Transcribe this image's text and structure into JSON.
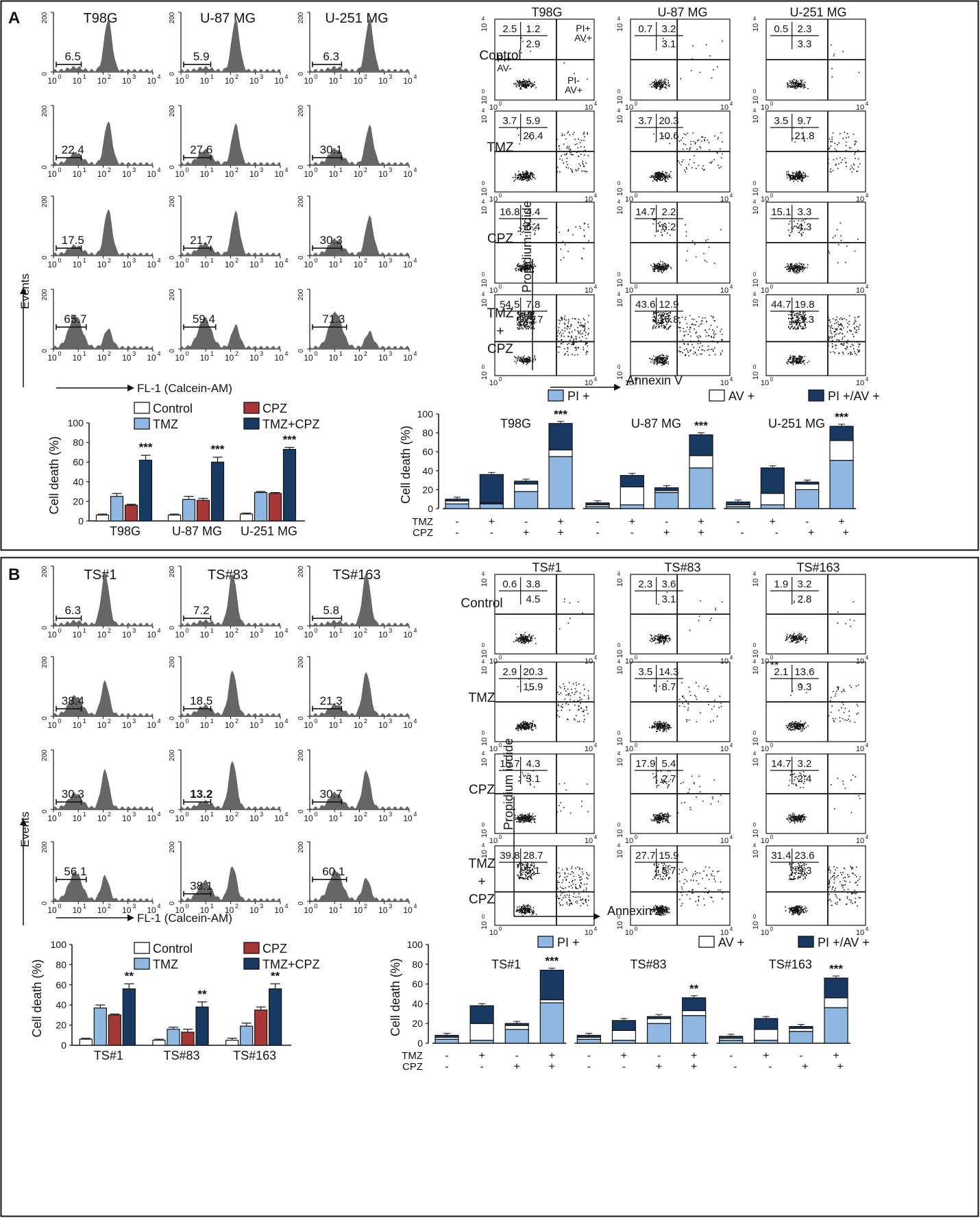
{
  "panels": [
    {
      "letter": "A",
      "cells": [
        "T98G",
        "U-87 MG",
        "U-251 MG"
      ],
      "treatments": [
        "Control",
        "TMZ",
        "CPZ",
        "TMZ\n+\nCPZ"
      ],
      "hist_values": [
        [
          "6.5",
          "5.9",
          "6.3"
        ],
        [
          "22.4",
          "27.6",
          "30.1"
        ],
        [
          "17.5",
          "21.7",
          "30.3"
        ],
        [
          "65.7",
          "59.4",
          "71.3"
        ]
      ],
      "scatter_values": [
        [
          [
            "2.5",
            "1.2",
            "2.9"
          ],
          [
            "0.7",
            "3.2",
            "3.1"
          ],
          [
            "0.5",
            "2.3",
            "3.3"
          ]
        ],
        [
          [
            "3.7",
            "5.9",
            "26.4"
          ],
          [
            "3.7",
            "20.3",
            "10.6"
          ],
          [
            "3.5",
            "9.7",
            "21.8"
          ]
        ],
        [
          [
            "16.8",
            "4.4",
            "6.4"
          ],
          [
            "14.7",
            "2.2",
            "6.2"
          ],
          [
            "15.1",
            "3.3",
            "4.3"
          ]
        ],
        [
          [
            "54.5",
            "7.8",
            "25.7"
          ],
          [
            "43.6",
            "12.9",
            "16.8"
          ],
          [
            "44.7",
            "19.8",
            "11.3"
          ]
        ]
      ],
      "quadrant_labels": {
        "ul": "PI+\nAV-",
        "ur": "PI+\nAV+",
        "lr": "PI-\nAV+"
      },
      "hist_axis": {
        "events": "Events",
        "fl": "FL-1 (Calcein-AM)",
        "ticks": [
          "10",
          "10",
          "10",
          "10",
          "10"
        ],
        "exps": [
          "0",
          "1",
          "2",
          "3",
          "4"
        ],
        "yticks": [
          "0",
          "200"
        ]
      },
      "scatter_axis": {
        "x": "Annexin V",
        "y": "Propidium iodide"
      },
      "legend_bar": [
        "Control",
        "TMZ",
        "CPZ",
        "TMZ+CPZ"
      ],
      "legend_stack": [
        "PI +",
        "AV +",
        "PI +/AV +"
      ],
      "bar_ylabel": "Cell death (%)",
      "stack_ylabel": "Cell death (%)",
      "sign_rows": {
        "tmz_label": "TMZ",
        "cpz_label": "CPZ",
        "tmz": [
          "-",
          "+",
          "-",
          "+"
        ],
        "cpz": [
          "-",
          "-",
          "+",
          "+"
        ]
      }
    },
    {
      "letter": "B",
      "cells": [
        "TS#1",
        "TS#83",
        "TS#163"
      ],
      "treatments": [
        "Control",
        "TMZ",
        "CPZ",
        "TMZ\n+\nCPZ"
      ],
      "hist_values": [
        [
          "6.3",
          "7.2",
          "5.8"
        ],
        [
          "38.4",
          "18.5",
          "21.3"
        ],
        [
          "30.3",
          "13.2",
          "30.7"
        ],
        [
          "56.1",
          "38.1",
          "60.1"
        ]
      ],
      "scatter_values": [
        [
          [
            "0.6",
            "3.8",
            "4.5"
          ],
          [
            "2.3",
            "3.6",
            "3.1"
          ],
          [
            "1.9",
            "3.2",
            "2.8"
          ]
        ],
        [
          [
            "2.9",
            "20.3",
            "15.9"
          ],
          [
            "3.5",
            "14.3",
            "8.7"
          ],
          [
            "2.1",
            "13.6",
            "9.3"
          ]
        ],
        [
          [
            "15.7",
            "4.3",
            "3.1"
          ],
          [
            "17.9",
            "5.4",
            "2.7"
          ],
          [
            "14.7",
            "3.2",
            "2.4"
          ]
        ],
        [
          [
            "39.8",
            "28.7",
            "5.1"
          ],
          [
            "27.7",
            "15.9",
            "5.7"
          ],
          [
            "31.4",
            "23.6",
            "9.3"
          ]
        ]
      ],
      "extra_mark": "**",
      "hist_axis": {
        "events": "Events",
        "fl": "FL-1 (Calcein-AM)",
        "ticks": [
          "10",
          "10",
          "10",
          "10",
          "10"
        ],
        "exps": [
          "0",
          "1",
          "2",
          "3",
          "4"
        ],
        "yticks": [
          "0",
          "200"
        ]
      },
      "scatter_axis": {
        "x": "Annexin V",
        "y": "Propidium iodide"
      },
      "legend_bar": [
        "Control",
        "TMZ",
        "CPZ",
        "TMZ+CPZ"
      ],
      "legend_stack": [
        "PI +",
        "AV +",
        "PI +/AV +"
      ],
      "bar_ylabel": "Cell death (%)",
      "stack_ylabel": "Cell death (%)",
      "sign_rows": {
        "tmz_label": "TMZ",
        "cpz_label": "CPZ",
        "tmz": [
          "-",
          "+",
          "-",
          "+"
        ],
        "cpz": [
          "-",
          "-",
          "+",
          "+"
        ]
      }
    }
  ],
  "colors": {
    "control": "#ffffff",
    "tmz": "#8fb8e0",
    "cpz": "#a83838",
    "combo": "#183a62",
    "hist": "#666666"
  },
  "chart_data": [
    {
      "type": "bar",
      "panel": "A",
      "categories": [
        "T98G",
        "U-87 MG",
        "U-251 MG"
      ],
      "series": [
        {
          "name": "Control",
          "values": [
            6,
            6,
            7
          ]
        },
        {
          "name": "TMZ",
          "values": [
            25,
            22,
            29
          ]
        },
        {
          "name": "CPZ",
          "values": [
            16,
            21,
            28
          ]
        },
        {
          "name": "TMZ+CPZ",
          "values": [
            62,
            60,
            73
          ]
        }
      ],
      "errors": [
        [
          1,
          1,
          1
        ],
        [
          3,
          3,
          1
        ],
        [
          1,
          2,
          1
        ],
        [
          5,
          5,
          2
        ]
      ],
      "significance": [
        "***",
        "***",
        "***"
      ],
      "ylabel": "Cell death (%)",
      "ylim": [
        0,
        100
      ],
      "yticks": [
        0,
        20,
        40,
        60,
        80,
        100
      ]
    },
    {
      "type": "bar",
      "stacked": true,
      "panel": "A",
      "groups": [
        "T98G",
        "U-87 MG",
        "U-251 MG"
      ],
      "conditions": [
        "Control",
        "TMZ",
        "CPZ",
        "TMZ+CPZ"
      ],
      "series": [
        {
          "name": "PI +",
          "values": [
            [
              5,
              5,
              18,
              55
            ],
            [
              2,
              4,
              17,
              43
            ],
            [
              2,
              4,
              20,
              51
            ]
          ]
        },
        {
          "name": "AV +",
          "values": [
            [
              3,
              1,
              8,
              7
            ],
            [
              2,
              19,
              2,
              13
            ],
            [
              2,
              12,
              6,
              21
            ]
          ]
        },
        {
          "name": "PI +/AV +",
          "values": [
            [
              2,
              30,
              3,
              28
            ],
            [
              2,
              12,
              3,
              22
            ],
            [
              3,
              27,
              2,
              15
            ]
          ]
        }
      ],
      "significance": [
        "***",
        "***",
        "***"
      ],
      "ylabel": "Cell death (%)",
      "ylim": [
        0,
        100
      ],
      "yticks": [
        0,
        20,
        40,
        60,
        80,
        100
      ]
    },
    {
      "type": "bar",
      "panel": "B",
      "categories": [
        "TS#1",
        "TS#83",
        "TS#163"
      ],
      "series": [
        {
          "name": "Control",
          "values": [
            6,
            5,
            5
          ]
        },
        {
          "name": "TMZ",
          "values": [
            37,
            16,
            19
          ]
        },
        {
          "name": "CPZ",
          "values": [
            30,
            13,
            35
          ]
        },
        {
          "name": "TMZ+CPZ",
          "values": [
            56,
            38,
            56
          ]
        }
      ],
      "errors": [
        [
          1,
          1,
          2
        ],
        [
          3,
          2,
          3
        ],
        [
          1,
          3,
          3
        ],
        [
          5,
          5,
          5
        ]
      ],
      "significance": [
        "**",
        "**",
        "**"
      ],
      "ylabel": "Cell death (%)",
      "ylim": [
        0,
        100
      ],
      "yticks": [
        0,
        20,
        40,
        60,
        80,
        100
      ]
    },
    {
      "type": "bar",
      "stacked": true,
      "panel": "B",
      "groups": [
        "TS#1",
        "TS#83",
        "TS#163"
      ],
      "conditions": [
        "Control",
        "TMZ",
        "CPZ",
        "TMZ+CPZ"
      ],
      "series": [
        {
          "name": "PI +",
          "values": [
            [
              4,
              3,
              14,
              41
            ],
            [
              4,
              3,
              20,
              28
            ],
            [
              3,
              3,
              12,
              36
            ]
          ]
        },
        {
          "name": "AV +",
          "values": [
            [
              2,
              17,
              4,
              3
            ],
            [
              2,
              10,
              5,
              5
            ],
            [
              2,
              11,
              3,
              10
            ]
          ]
        },
        {
          "name": "PI +/AV +",
          "values": [
            [
              2,
              18,
              2,
              30
            ],
            [
              2,
              10,
              2,
              13
            ],
            [
              2,
              11,
              2,
              20
            ]
          ]
        }
      ],
      "significance": [
        "***",
        "**",
        "***"
      ],
      "ylabel": "Cell death (%)",
      "ylim": [
        0,
        100
      ],
      "yticks": [
        0,
        20,
        40,
        60,
        80,
        100
      ]
    }
  ]
}
